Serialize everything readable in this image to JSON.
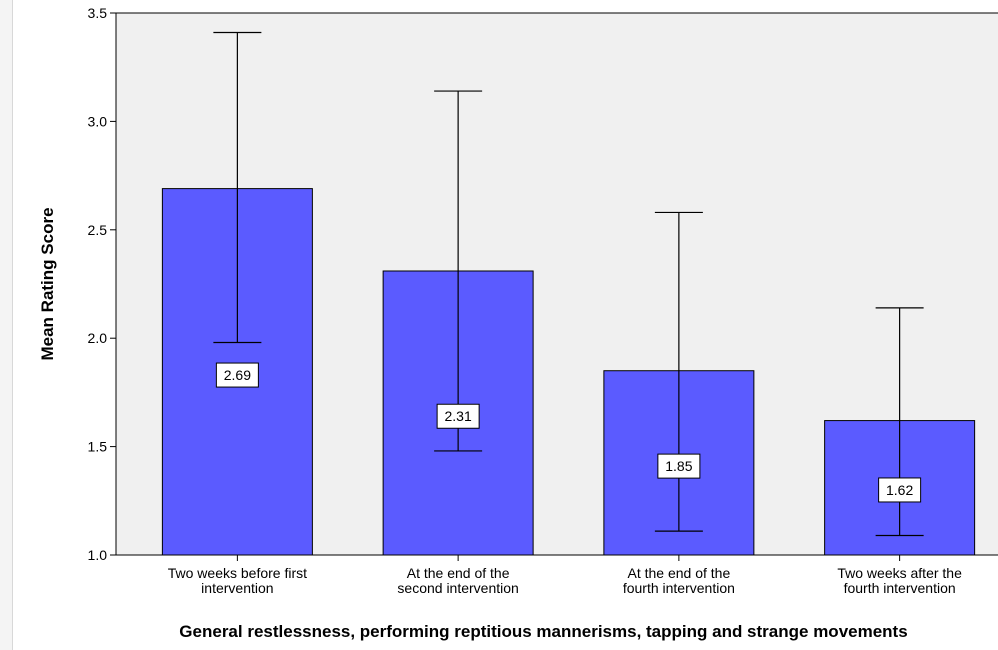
{
  "chart_data": {
    "type": "bar",
    "categories": [
      [
        "Two weeks before first",
        "intervention"
      ],
      [
        "At the end of the",
        "second intervention"
      ],
      [
        "At the end of the",
        "fourth intervention"
      ],
      [
        "Two weeks after the",
        "fourth intervention"
      ]
    ],
    "values": [
      2.69,
      2.31,
      1.85,
      1.62
    ],
    "data_labels": [
      "2.69",
      "2.31",
      "1.85",
      "1.62"
    ],
    "error_bars": {
      "lower": [
        1.98,
        1.48,
        1.11,
        1.09
      ],
      "upper": [
        3.41,
        3.14,
        2.58,
        2.14
      ]
    },
    "title": "",
    "xlabel": "General restlessness, performing reptitious mannerisms, tapping and strange movements",
    "ylabel": "Mean Rating Score",
    "ylim": [
      1.0,
      3.5
    ],
    "yticks": [
      "1.0",
      "1.5",
      "2.0",
      "2.5",
      "3.0",
      "3.5"
    ],
    "grid": false,
    "colors": {
      "bar_fill": "#5b5bff",
      "plot_background": "#f0f0f0",
      "error_bar": "#000000"
    }
  }
}
